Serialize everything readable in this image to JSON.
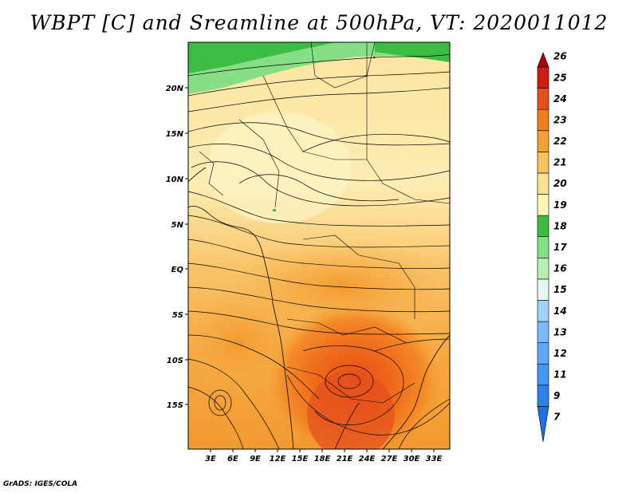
{
  "title": "WBPT [C] and Sreamline at 500hPa, VT: 2020011012",
  "credit": "GrADS: IGES/COLA",
  "map": {
    "lat_labels": [
      "20N",
      "15N",
      "10N",
      "5N",
      "EQ",
      "5S",
      "10S",
      "15S"
    ],
    "lon_labels": [
      "3E",
      "6E",
      "9E",
      "12E",
      "15E",
      "18E",
      "21E",
      "24E",
      "27E",
      "30E",
      "33E"
    ]
  },
  "colorbar": {
    "labels": [
      "7",
      "9",
      "11",
      "12",
      "13",
      "14",
      "15",
      "16",
      "17",
      "18",
      "19",
      "20",
      "21",
      "22",
      "23",
      "24",
      "25",
      "26"
    ],
    "colors": [
      "#1e6ee6",
      "#2e82ef",
      "#4696f5",
      "#5fa8f9",
      "#7ab9fb",
      "#a3d0fd",
      "#e6f7f4",
      "#b8efb4",
      "#86df87",
      "#3cbc42",
      "#fdf6b8",
      "#fbe190",
      "#f9c160",
      "#f5a032",
      "#f07f1a",
      "#e2501c",
      "#cc1d10",
      "#a50707"
    ]
  }
}
